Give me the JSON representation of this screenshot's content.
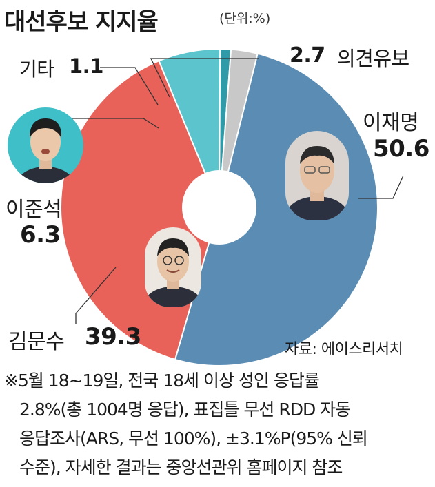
{
  "title": "대선후보 지지율",
  "unit": "(단위:%)",
  "chart_data": {
    "type": "pie",
    "title": "대선후보 지지율",
    "unit": "%",
    "slices": [
      {
        "name": "이재명",
        "value": 50.6,
        "color": "#5b8db4"
      },
      {
        "name": "김문수",
        "value": 39.3,
        "color": "#e8625a"
      },
      {
        "name": "이준석",
        "value": 6.3,
        "color": "#5bc4cc"
      },
      {
        "name": "기타",
        "value": 1.1,
        "color": "#2f9aa8"
      },
      {
        "name": "의견유보",
        "value": 2.7,
        "color": "#c8c8c8"
      }
    ]
  },
  "labels": {
    "lee": {
      "name": "이재명",
      "value": "50.6"
    },
    "kim": {
      "name": "김문수",
      "value": "39.3"
    },
    "jun": {
      "name": "이준석",
      "value": "6.3"
    },
    "etc": {
      "name": "기타",
      "value": "1.1"
    },
    "undecided": {
      "name": "의견유보",
      "value": "2.7"
    }
  },
  "source": "자료: 에이스리서치",
  "notes": [
    "※5월 18~19일, 전국 18세 이상 성인 응답률",
    "2.8%(총 1004명 응답), 표집틀 무선 RDD 자동",
    "응답조사(ARS, 무선 100%), ±3.1%P(95% 신뢰",
    "수준), 자세한 결과는 중앙선관위 홈페이지 참조"
  ]
}
